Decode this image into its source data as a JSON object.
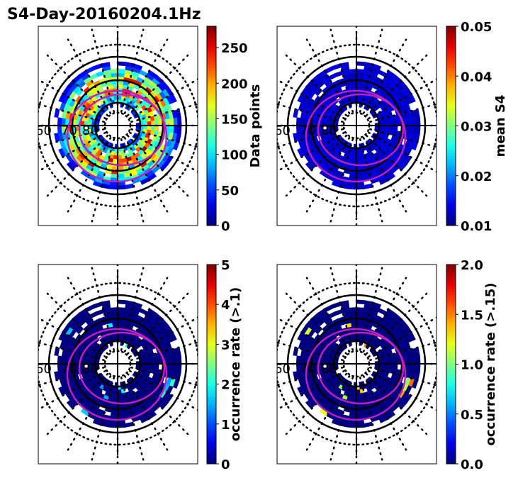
{
  "chart_data": {
    "type": "heatmap",
    "title": "S4-Day-20160204.1Hz",
    "projection": "polar (magnetic latitude / local time)",
    "latitude_labels": [
      "60",
      "70",
      "80"
    ],
    "panels": [
      {
        "name": "data-points",
        "colorbar_label": "Data points",
        "vmin": 0,
        "vmax": 280,
        "ticks": [
          0,
          50,
          100,
          150,
          200,
          250
        ],
        "tick_labels": [
          "0",
          "50",
          "100",
          "150",
          "200",
          "250"
        ],
        "ring_levels": [
          40,
          90,
          130,
          170,
          190,
          160,
          140,
          180,
          150,
          110,
          60,
          30
        ]
      },
      {
        "name": "mean-s4",
        "colorbar_label": "mean S4",
        "vmin": 0.01,
        "vmax": 0.05,
        "ticks": [
          0.01,
          0.02,
          0.03,
          0.04,
          0.05
        ],
        "tick_labels": [
          "0.01",
          "0.02",
          "0.03",
          "0.04",
          "0.05"
        ],
        "ring_levels": [
          0.012,
          0.012,
          0.012,
          0.012,
          0.012,
          0.012,
          0.012,
          0.012,
          0.012,
          0.012,
          0.012,
          0.012
        ]
      },
      {
        "name": "occurrence-rate-01",
        "colorbar_label": "occurrence rate (>.1)",
        "vmin": 0,
        "vmax": 5,
        "ticks": [
          0,
          1,
          2,
          3,
          4,
          5
        ],
        "tick_labels": [
          "0",
          "1",
          "2",
          "3",
          "4",
          "5"
        ],
        "ring_levels": [
          0,
          0,
          0,
          0,
          0,
          0,
          0,
          0,
          0,
          0,
          0,
          0
        ],
        "sparse_max": 2.2
      },
      {
        "name": "occurrence-rate-015",
        "colorbar_label": "occurrence rate (>.15)",
        "vmin": 0,
        "vmax": 2,
        "ticks": [
          0,
          0.5,
          1,
          1.5,
          2
        ],
        "tick_labels": [
          "0.0",
          "0.5",
          "1.0",
          "1.5",
          "2.0"
        ],
        "ring_levels": [
          0,
          0,
          0,
          0,
          0,
          0,
          0,
          0,
          0,
          0,
          0,
          0
        ],
        "sparse_max": 1.6
      }
    ],
    "colormap": "jet",
    "colors": {
      "oval": "#c01ec0",
      "grid": "#000000"
    }
  }
}
